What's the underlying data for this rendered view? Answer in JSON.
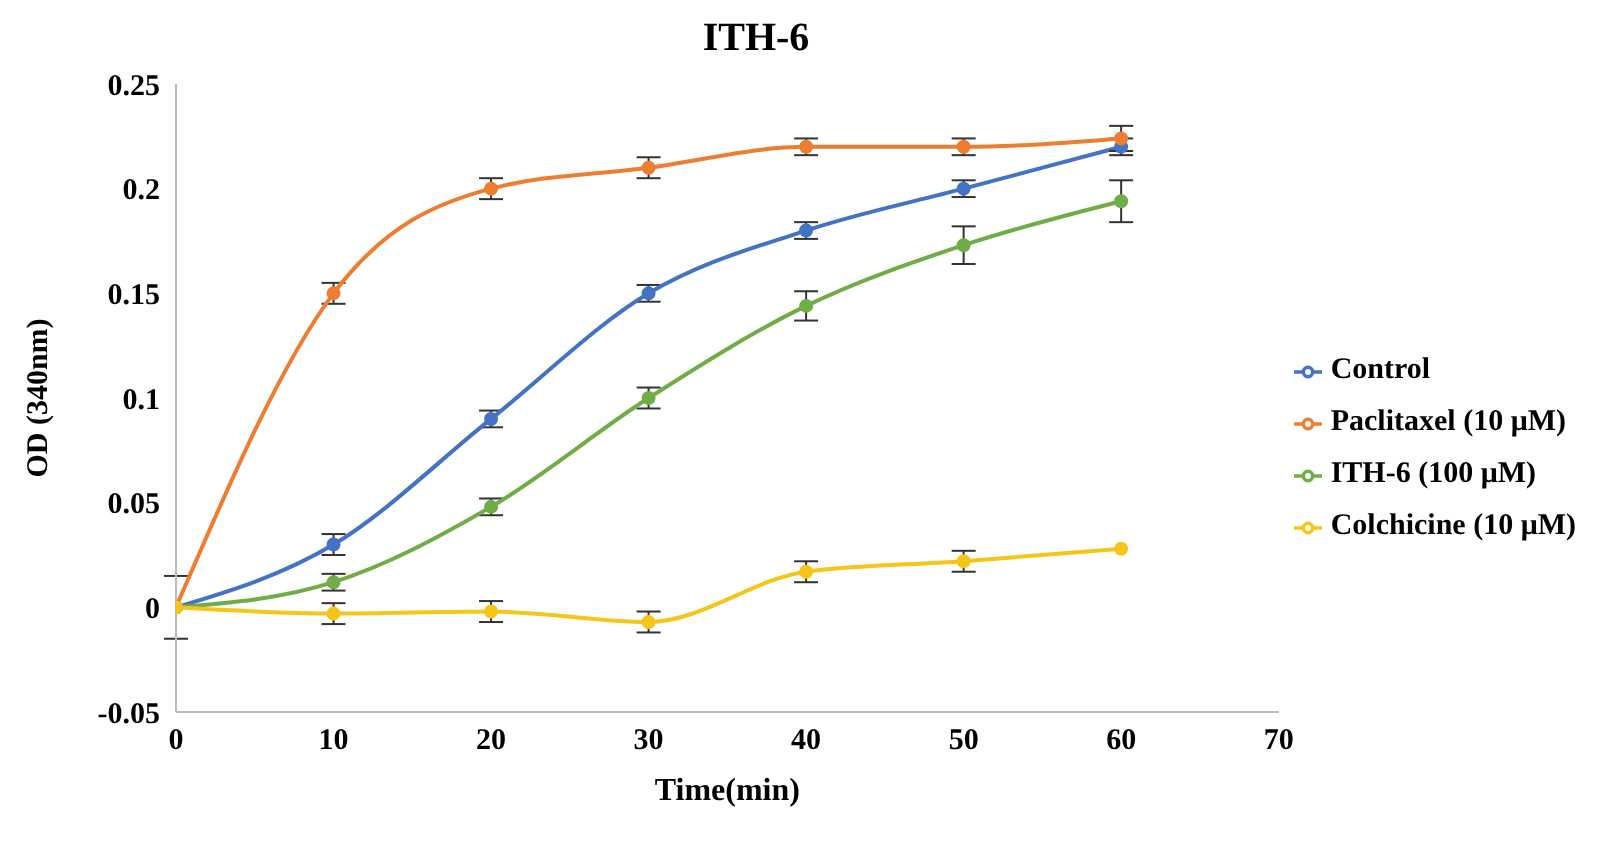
{
  "chart_data": {
    "type": "line",
    "title": "ITH-6",
    "xlabel": "Time(min)",
    "ylabel": "OD (340nm)",
    "x": [
      0,
      10,
      20,
      30,
      40,
      50,
      60
    ],
    "series": [
      {
        "name": "Control",
        "color": "#4472c4",
        "values": [
          0,
          0.03,
          0.09,
          0.15,
          0.18,
          0.2,
          0.22
        ],
        "errors": [
          0.015,
          0.005,
          0.004,
          0.004,
          0.004,
          0.004,
          0.004
        ]
      },
      {
        "name": "Paclitaxel (10 μM)",
        "color": "#ed7d31",
        "values": [
          0,
          0.15,
          0.2,
          0.21,
          0.22,
          0.22,
          0.224
        ],
        "errors": [
          0,
          0.005,
          0.005,
          0.005,
          0.004,
          0.004,
          0.006
        ]
      },
      {
        "name": "ITH-6 (100 μM)",
        "color": "#70ad47",
        "values": [
          0,
          0.012,
          0.048,
          0.1,
          0.144,
          0.173,
          0.194
        ],
        "errors": [
          0,
          0.004,
          0.004,
          0.005,
          0.007,
          0.009,
          0.01
        ]
      },
      {
        "name": "Colchicine (10 μM)",
        "color": "#f5c518",
        "values": [
          0,
          -0.003,
          -0.002,
          -0.007,
          0.017,
          0.022,
          0.028
        ],
        "errors": [
          0,
          0.005,
          0.005,
          0.005,
          0.005,
          0.005,
          0
        ]
      }
    ],
    "xlim": [
      0,
      70
    ],
    "xticks": [
      0,
      10,
      20,
      30,
      40,
      50,
      60,
      70
    ],
    "ylim": [
      -0.05,
      0.25
    ],
    "yticks": [
      -0.05,
      0,
      0.05,
      0.1,
      0.15,
      0.2,
      0.25
    ],
    "grid": false,
    "legend": "right",
    "marker": "circle",
    "line_style": "solid"
  }
}
